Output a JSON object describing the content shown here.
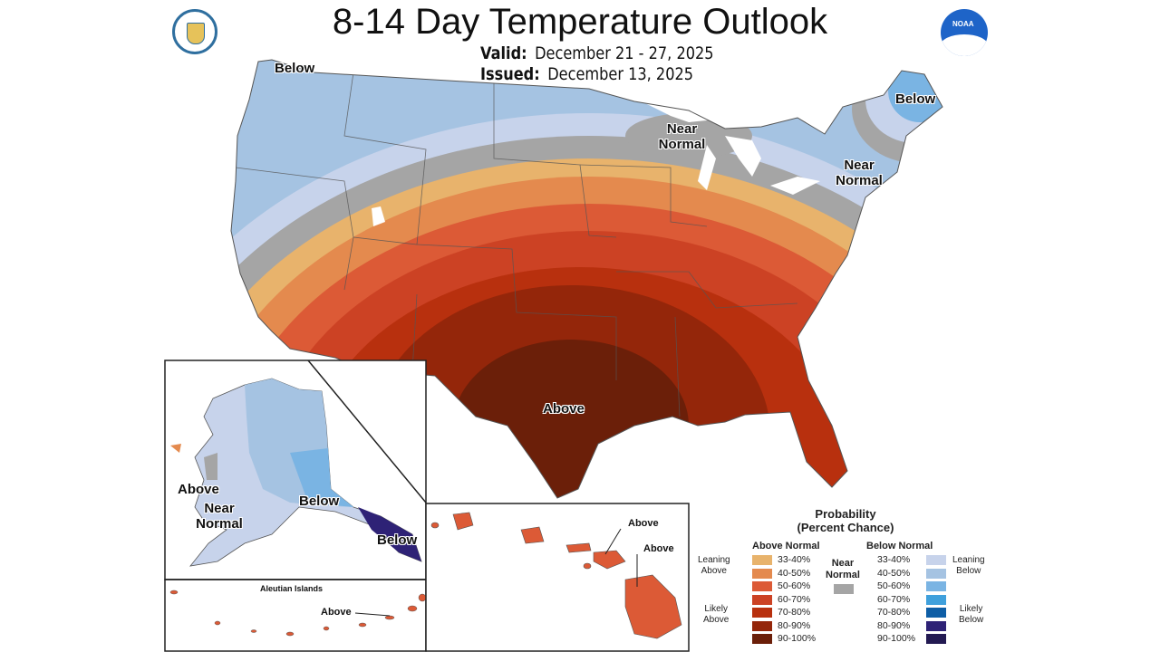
{
  "header": {
    "title": "8-14 Day Temperature Outlook",
    "valid_label": "Valid:",
    "valid_value": "December 21 - 27, 2025",
    "issued_label": "Issued:",
    "issued_value": "December 13, 2025"
  },
  "logos": {
    "left": "Department of Commerce seal",
    "right": "NOAA"
  },
  "map_labels": {
    "below_nw": "Below",
    "below_ne": "Below",
    "near_normal_lakes": "Near Normal",
    "near_normal_ne": "Near Normal",
    "above_center": "Above",
    "ak_above": "Above",
    "ak_near_normal": "Near Normal",
    "ak_below": "Below",
    "ak_below_se": "Below",
    "aleutian_title": "Aleutian Islands",
    "aleutian_above": "Above",
    "hi_above_1": "Above",
    "hi_above_2": "Above"
  },
  "legend": {
    "title_1": "Probability",
    "title_2": "(Percent Chance)",
    "above_header": "Above Normal",
    "below_header": "Below Normal",
    "near_1": "Near",
    "near_2": "Normal",
    "near_color": "#a5a5a5",
    "leaning_above": [
      "Leaning",
      "Above"
    ],
    "likely_above": [
      "Likely",
      "Above"
    ],
    "leaning_below": [
      "Leaning",
      "Below"
    ],
    "likely_below": [
      "Likely",
      "Below"
    ],
    "above": [
      {
        "range": "33-40%",
        "color": "#e8b36c"
      },
      {
        "range": "40-50%",
        "color": "#e48a4e"
      },
      {
        "range": "50-60%",
        "color": "#dc5a36"
      },
      {
        "range": "60-70%",
        "color": "#cc4224"
      },
      {
        "range": "70-80%",
        "color": "#b8300e"
      },
      {
        "range": "80-90%",
        "color": "#94260a"
      },
      {
        "range": "90-100%",
        "color": "#6b1f09"
      }
    ],
    "below": [
      {
        "range": "33-40%",
        "color": "#c7d3eb"
      },
      {
        "range": "40-50%",
        "color": "#a5c3e2"
      },
      {
        "range": "50-60%",
        "color": "#7ab4e3"
      },
      {
        "range": "60-70%",
        "color": "#3fa0dc"
      },
      {
        "range": "70-80%",
        "color": "#0e5ea6"
      },
      {
        "range": "80-90%",
        "color": "#2e2276"
      },
      {
        "range": "90-100%",
        "color": "#231a52"
      }
    ]
  }
}
